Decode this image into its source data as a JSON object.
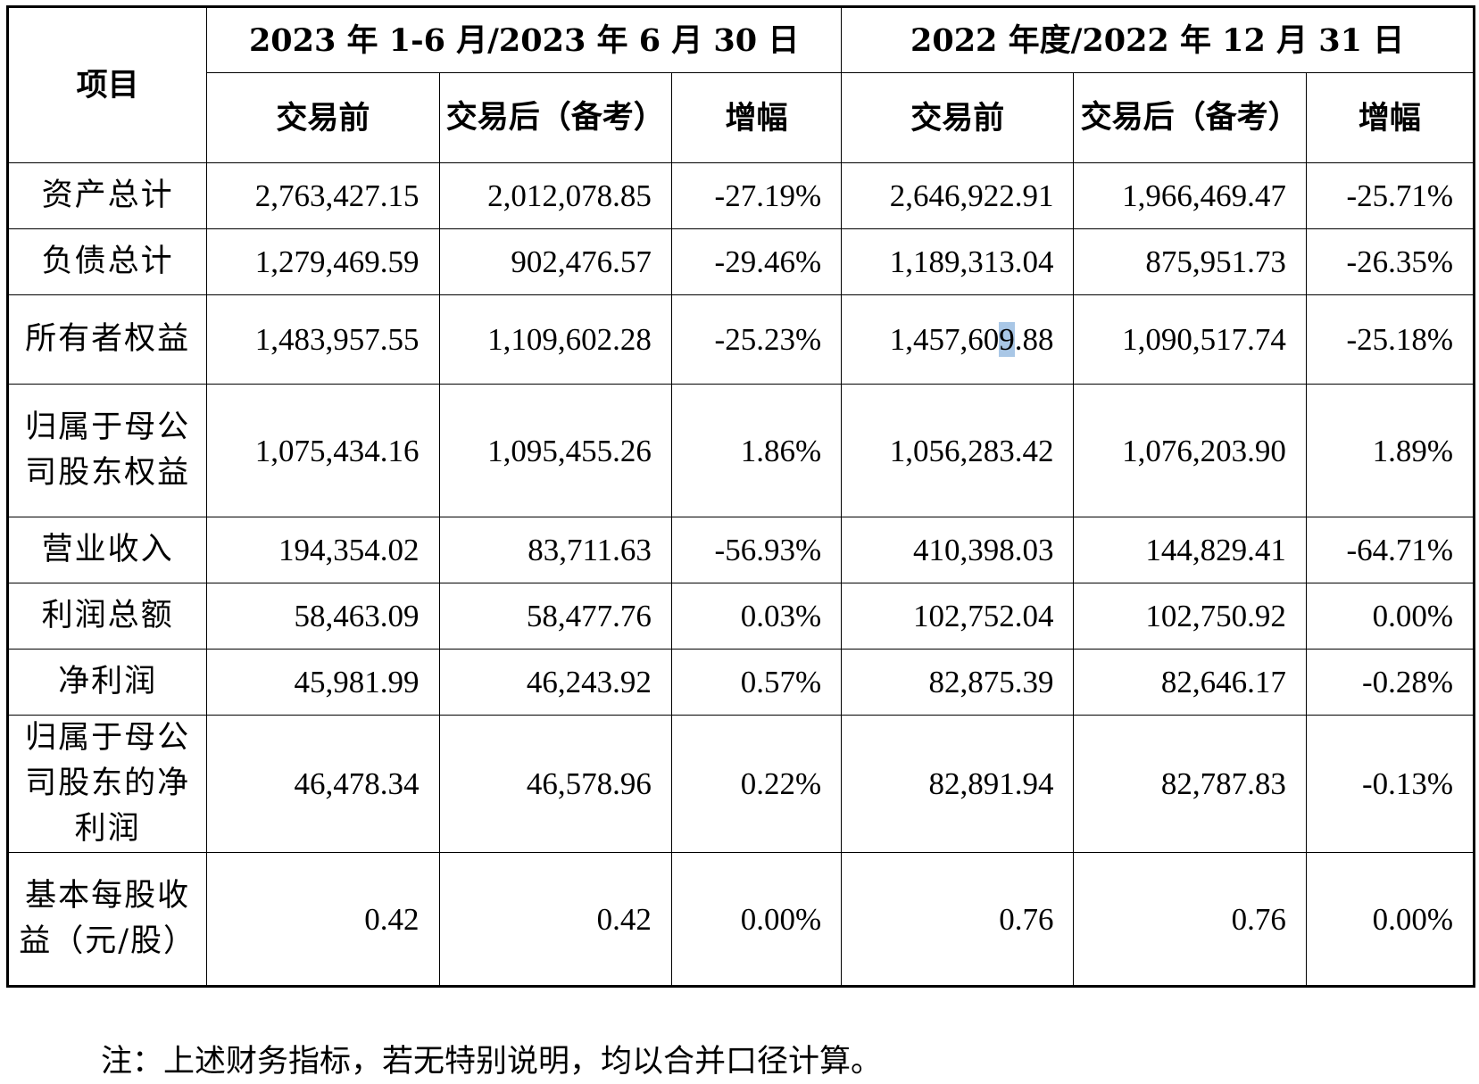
{
  "header": {
    "item": "项目",
    "period1": "2023 年 1-6 月/2023 年 6 月 30 日",
    "period2": "2022 年度/2022 年 12 月 31 日",
    "before": "交易前",
    "after": "交易后（备考）",
    "change": "增幅"
  },
  "rows": [
    {
      "label": "资产总计",
      "p1_before": "2,763,427.15",
      "p1_after": "2,012,078.85",
      "p1_change": "-27.19%",
      "p2_before": "2,646,922.91",
      "p2_after": "1,966,469.47",
      "p2_change": "-25.71%"
    },
    {
      "label": "负债总计",
      "p1_before": "1,279,469.59",
      "p1_after": "902,476.57",
      "p1_change": "-29.46%",
      "p2_before": "1,189,313.04",
      "p2_after": "875,951.73",
      "p2_change": "-26.35%"
    },
    {
      "label": "所有者权益",
      "p1_before": "1,483,957.55",
      "p1_after": "1,109,602.28",
      "p1_change": "-25.23%",
      "p2_before_a": "1,457,60",
      "p2_before_b": "9",
      "p2_before_c": ".88",
      "p2_after": "1,090,517.74",
      "p2_change": "-25.18%"
    },
    {
      "label": "归属于母公司股东权益",
      "p1_before": "1,075,434.16",
      "p1_after": "1,095,455.26",
      "p1_change": "1.86%",
      "p2_before": "1,056,283.42",
      "p2_after": "1,076,203.90",
      "p2_change": "1.89%"
    },
    {
      "label": "营业收入",
      "p1_before": "194,354.02",
      "p1_after": "83,711.63",
      "p1_change": "-56.93%",
      "p2_before": "410,398.03",
      "p2_after": "144,829.41",
      "p2_change": "-64.71%"
    },
    {
      "label": "利润总额",
      "p1_before": "58,463.09",
      "p1_after": "58,477.76",
      "p1_change": "0.03%",
      "p2_before": "102,752.04",
      "p2_after": "102,750.92",
      "p2_change": "0.00%"
    },
    {
      "label": "净利润",
      "p1_before": "45,981.99",
      "p1_after": "46,243.92",
      "p1_change": "0.57%",
      "p2_before": "82,875.39",
      "p2_after": "82,646.17",
      "p2_change": "-0.28%"
    },
    {
      "label": "归属于母公司股东的净利润",
      "p1_before": "46,478.34",
      "p1_after": "46,578.96",
      "p1_change": "0.22%",
      "p2_before": "82,891.94",
      "p2_after": "82,787.83",
      "p2_change": "-0.13%"
    },
    {
      "label": "基本每股收益（元/股）",
      "p1_before": "0.42",
      "p1_after": "0.42",
      "p1_change": "0.00%",
      "p2_before": "0.76",
      "p2_after": "0.76",
      "p2_change": "0.00%"
    }
  ],
  "note": "注：上述财务指标，若无特别说明，均以合并口径计算。",
  "colors": {
    "selection_highlight": "#a9c7e6"
  }
}
